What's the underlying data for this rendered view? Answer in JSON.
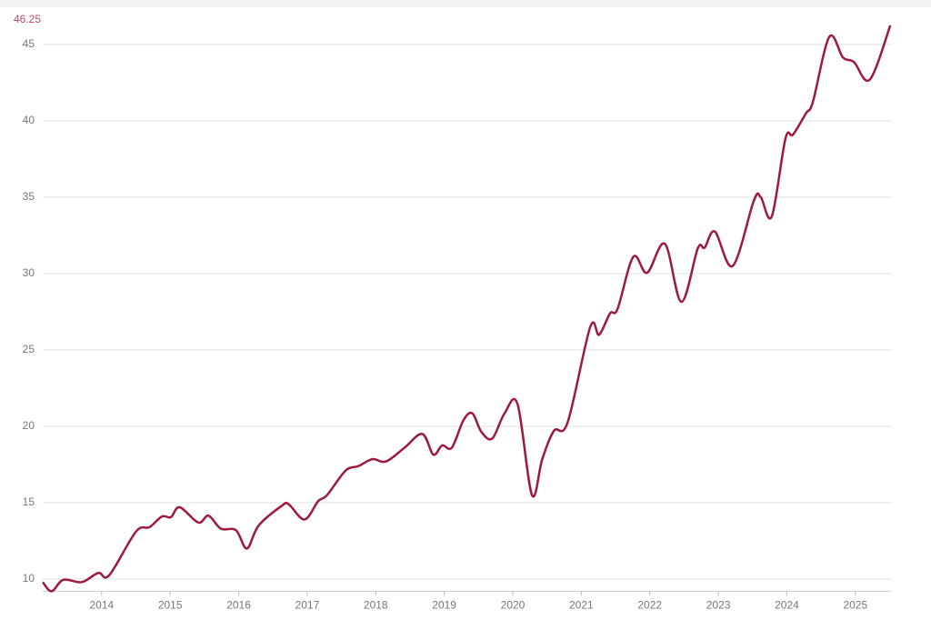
{
  "chart_data": {
    "type": "line",
    "last_value": 46.25,
    "x": [
      2013.14,
      2013.27,
      2013.44,
      2013.71,
      2013.95,
      2014.11,
      2014.5,
      2014.7,
      2014.88,
      2015.01,
      2015.14,
      2015.41,
      2015.56,
      2015.74,
      2015.96,
      2016.12,
      2016.29,
      2016.63,
      2016.73,
      2016.96,
      2017.16,
      2017.29,
      2017.56,
      2017.75,
      2017.95,
      2018.15,
      2018.42,
      2018.68,
      2018.84,
      2018.97,
      2019.11,
      2019.28,
      2019.41,
      2019.54,
      2019.7,
      2019.88,
      2020.07,
      2020.28,
      2020.43,
      2020.6,
      2020.8,
      2021.13,
      2021.26,
      2021.42,
      2021.53,
      2021.76,
      2021.96,
      2022.22,
      2022.46,
      2022.7,
      2022.8,
      2022.95,
      2023.21,
      2023.52,
      2023.62,
      2023.78,
      2023.98,
      2024.09,
      2024.28,
      2024.38,
      2024.62,
      2024.82,
      2024.98,
      2025.21,
      2025.51
    ],
    "series": [
      {
        "color": "#9e1a3c",
        "values": [
          9.8,
          9.2,
          9.95,
          9.8,
          10.4,
          10.25,
          13.1,
          13.4,
          14.1,
          14.05,
          14.7,
          13.7,
          14.15,
          13.3,
          13.2,
          12.0,
          13.5,
          14.8,
          14.9,
          13.9,
          15.1,
          15.5,
          17.1,
          17.4,
          17.85,
          17.7,
          18.6,
          19.5,
          18.15,
          18.75,
          18.6,
          20.4,
          20.85,
          19.65,
          19.2,
          20.85,
          21.45,
          15.5,
          17.85,
          19.7,
          20.25,
          26.5,
          26.0,
          27.4,
          27.7,
          31.1,
          30.05,
          31.95,
          28.15,
          31.65,
          31.7,
          32.75,
          30.5,
          34.8,
          35.0,
          33.75,
          38.85,
          39.1,
          40.5,
          41.25,
          45.5,
          44.15,
          43.85,
          42.7,
          46.25
        ]
      }
    ],
    "xlim": [
      2013.14,
      2025.52
    ],
    "xticks": [
      2014,
      2015,
      2016,
      2017,
      2018,
      2019,
      2020,
      2021,
      2022,
      2023,
      2024,
      2025
    ],
    "ylim": [
      9.2,
      47.2
    ],
    "yticks": [
      10,
      15,
      20,
      25,
      30,
      35,
      40,
      45
    ],
    "grid": true
  }
}
